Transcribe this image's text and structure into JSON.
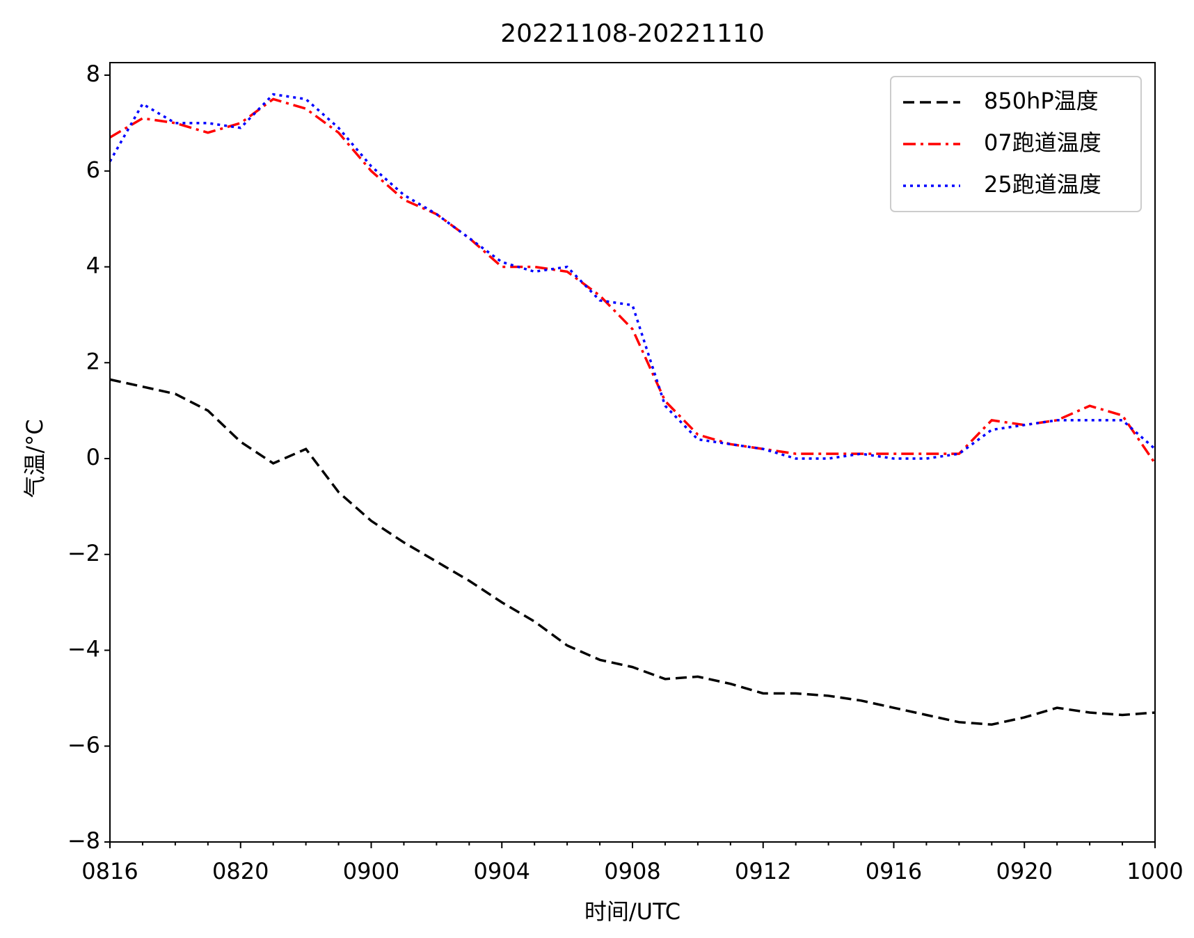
{
  "chart_data": {
    "type": "line",
    "title": "20221108-20221110",
    "xlabel": "时间/UTC",
    "ylabel": "气温/°C",
    "categories": [
      "0816",
      null,
      null,
      null,
      "0820",
      null,
      null,
      null,
      "0900",
      null,
      null,
      null,
      "0904",
      null,
      null,
      null,
      "0908",
      null,
      null,
      null,
      "0912",
      null,
      null,
      null,
      "0916",
      null,
      null,
      null,
      "0920",
      null,
      null,
      null,
      "1000"
    ],
    "series": [
      {
        "name": "850hP温度",
        "color": "#000000",
        "dash": "dashed",
        "values": [
          1.65,
          1.5,
          1.35,
          1.0,
          0.35,
          -0.1,
          0.2,
          -0.7,
          -1.3,
          -1.75,
          -2.15,
          -2.55,
          -3.0,
          -3.4,
          -3.9,
          -4.2,
          -4.35,
          -4.6,
          -4.55,
          -4.7,
          -4.9,
          -4.9,
          -4.95,
          -5.05,
          -5.2,
          -5.35,
          -5.5,
          -5.55,
          -5.4,
          -5.2,
          -5.3,
          -5.35,
          -5.3
        ]
      },
      {
        "name": "07跑道温度",
        "color": "#ff0000",
        "dash": "dashdot",
        "values": [
          6.7,
          7.1,
          7.0,
          6.8,
          7.0,
          7.5,
          7.3,
          6.8,
          6.0,
          5.4,
          5.1,
          4.6,
          4.0,
          4.0,
          3.9,
          3.4,
          2.7,
          1.2,
          0.5,
          0.3,
          0.2,
          0.1,
          0.1,
          0.1,
          0.1,
          0.1,
          0.1,
          0.8,
          0.7,
          0.8,
          1.1,
          0.9,
          -0.1
        ]
      },
      {
        "name": "25跑道温度",
        "color": "#0000ff",
        "dash": "dotted",
        "values": [
          6.2,
          7.4,
          7.0,
          7.0,
          6.9,
          7.6,
          7.5,
          6.9,
          6.1,
          5.5,
          5.1,
          4.6,
          4.1,
          3.9,
          4.0,
          3.3,
          3.2,
          1.1,
          0.4,
          0.3,
          0.2,
          0.0,
          0.0,
          0.1,
          0.0,
          0.0,
          0.1,
          0.6,
          0.7,
          0.8,
          0.8,
          0.8,
          0.2
        ]
      }
    ],
    "ylim": [
      -8,
      8
    ],
    "yticks": [
      {
        "value": -8,
        "label": "−8"
      },
      {
        "value": -6,
        "label": "−6"
      },
      {
        "value": -4,
        "label": "−4"
      },
      {
        "value": -2,
        "label": "−2"
      },
      0,
      2,
      4,
      6,
      8
    ],
    "grid": false,
    "legend": "upper right"
  }
}
